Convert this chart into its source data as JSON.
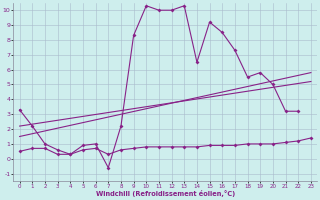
{
  "xlabel": "Windchill (Refroidissement éolien,°C)",
  "bg_color": "#ceeeed",
  "grid_color": "#aabbcc",
  "line_color": "#882288",
  "xmin": 0,
  "xmax": 23,
  "ymin": -1,
  "ymax": 10,
  "yticks": [
    -1,
    0,
    1,
    2,
    3,
    4,
    5,
    6,
    7,
    8,
    9,
    10
  ],
  "xticks": [
    0,
    1,
    2,
    3,
    4,
    5,
    6,
    7,
    8,
    9,
    10,
    11,
    12,
    13,
    14,
    15,
    16,
    17,
    18,
    19,
    20,
    21,
    22,
    23
  ],
  "series1_x": [
    0,
    1,
    2,
    3,
    4,
    5,
    6,
    7,
    8,
    9,
    10,
    11,
    12,
    13,
    14,
    15,
    16,
    17,
    18,
    19,
    20,
    21,
    22
  ],
  "series1_y": [
    3.3,
    2.2,
    1.0,
    0.6,
    0.3,
    0.9,
    1.0,
    -0.6,
    2.2,
    8.3,
    10.3,
    10.0,
    10.0,
    10.3,
    6.5,
    9.2,
    8.5,
    7.3,
    5.5,
    5.8,
    5.0,
    3.2,
    3.2
  ],
  "series2_x": [
    0,
    1,
    2,
    3,
    4,
    5,
    6,
    7,
    8,
    9,
    10,
    11,
    12,
    13,
    14,
    15,
    16,
    17,
    18,
    19,
    20,
    21,
    22,
    23
  ],
  "series2_y": [
    0.5,
    0.7,
    0.7,
    0.3,
    0.3,
    0.6,
    0.7,
    0.3,
    0.6,
    0.7,
    0.8,
    0.8,
    0.8,
    0.8,
    0.8,
    0.9,
    0.9,
    0.9,
    1.0,
    1.0,
    1.0,
    1.1,
    1.2,
    1.4
  ],
  "series3_x": [
    0,
    23
  ],
  "series3_y": [
    1.5,
    5.8
  ],
  "series4_x": [
    0,
    23
  ],
  "series4_y": [
    2.2,
    5.2
  ]
}
